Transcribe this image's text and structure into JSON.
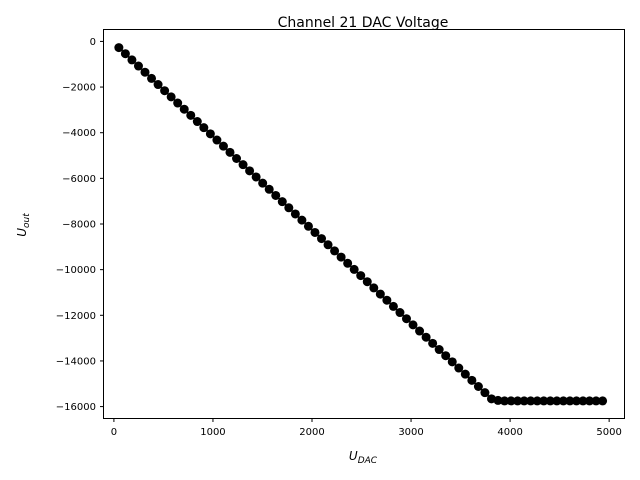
{
  "chart_data": {
    "type": "line",
    "title": "Channel 21 DAC Voltage",
    "xlabel": {
      "base": "U",
      "sub": "DAC"
    },
    "ylabel": {
      "base": "U",
      "sub": "out"
    },
    "xlim": [
      -100,
      5150
    ],
    "ylim": [
      -16500,
      500
    ],
    "xticks": [
      0,
      1000,
      2000,
      3000,
      4000,
      5000
    ],
    "xtick_labels": [
      "0",
      "1000",
      "2000",
      "3000",
      "4000",
      "5000"
    ],
    "yticks": [
      0,
      -2000,
      -4000,
      -6000,
      -8000,
      -10000,
      -12000,
      -14000,
      -16000
    ],
    "ytick_labels": [
      "0",
      "−2000",
      "−4000",
      "−6000",
      "−8000",
      "−10000",
      "−12000",
      "−14000",
      "−16000"
    ],
    "grid": false,
    "marker": "circle",
    "color": "#000000",
    "series": [
      {
        "x": [
          50,
          116,
          182,
          248,
          314,
          380,
          446,
          512,
          578,
          644,
          710,
          776,
          842,
          908,
          974,
          1040,
          1106,
          1172,
          1238,
          1304,
          1370,
          1436,
          1502,
          1568,
          1634,
          1700,
          1766,
          1832,
          1898,
          1964,
          2030,
          2096,
          2162,
          2228,
          2294,
          2360,
          2426,
          2492,
          2558,
          2624,
          2690,
          2756,
          2822,
          2888,
          2954,
          3020,
          3086,
          3152,
          3218,
          3284,
          3350,
          3416,
          3482,
          3548,
          3614,
          3680,
          3746,
          3812,
          3878,
          3944,
          4010,
          4076,
          4142,
          4208,
          4274,
          4340,
          4406,
          4472,
          4538,
          4604,
          4670,
          4736,
          4802,
          4868,
          4934
        ],
        "y": [
          -270,
          -540,
          -810,
          -1080,
          -1350,
          -1620,
          -1890,
          -2160,
          -2430,
          -2700,
          -2970,
          -3240,
          -3510,
          -3780,
          -4050,
          -4320,
          -4590,
          -4860,
          -5130,
          -5400,
          -5670,
          -5940,
          -6210,
          -6480,
          -6750,
          -7020,
          -7290,
          -7560,
          -7830,
          -8100,
          -8370,
          -8640,
          -8910,
          -9180,
          -9450,
          -9720,
          -9990,
          -10260,
          -10530,
          -10800,
          -11070,
          -11340,
          -11610,
          -11880,
          -12150,
          -12420,
          -12690,
          -12960,
          -13230,
          -13500,
          -13770,
          -14040,
          -14310,
          -14580,
          -14850,
          -15120,
          -15390,
          -15660,
          -15730,
          -15750,
          -15750,
          -15750,
          -15750,
          -15750,
          -15750,
          -15750,
          -15750,
          -15750,
          -15750,
          -15750,
          -15750,
          -15750,
          -15750,
          -15750,
          -15750
        ]
      }
    ]
  }
}
